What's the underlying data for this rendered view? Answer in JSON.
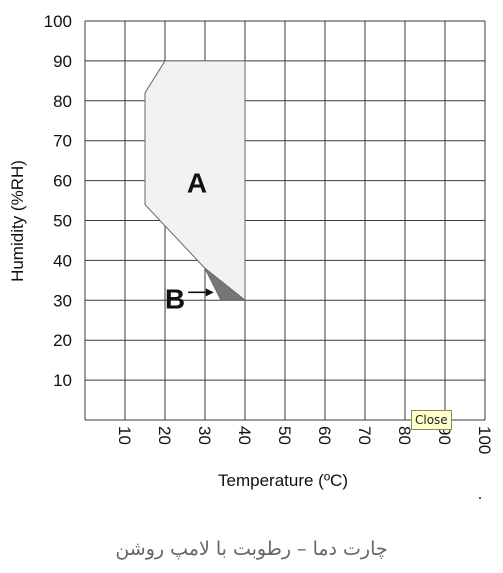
{
  "chart_data": {
    "type": "area",
    "xlabel": "Temperature (ºC)",
    "ylabel": "Humidity (%RH)",
    "xlim": [
      0,
      100
    ],
    "ylim": [
      0,
      100
    ],
    "x_ticks": [
      "10",
      "20",
      "30",
      "40",
      "50",
      "60",
      "70",
      "80",
      "90",
      "100"
    ],
    "y_ticks": [
      "10",
      "20",
      "30",
      "40",
      "50",
      "60",
      "70",
      "80",
      "90",
      "100"
    ],
    "grid": true,
    "regions": [
      {
        "label": "A",
        "points": [
          [
            20,
            90
          ],
          [
            40,
            90
          ],
          [
            40,
            30
          ],
          [
            30,
            38
          ],
          [
            15,
            54
          ],
          [
            15,
            82
          ]
        ],
        "fill": "#f2f2f2"
      },
      {
        "label": "B",
        "points": [
          [
            30,
            38
          ],
          [
            40,
            30
          ],
          [
            34,
            30
          ]
        ],
        "fill": "#777777"
      }
    ]
  },
  "close_button": {
    "label": "Close"
  },
  "caption": "چارت دما – رطوبت با لامپ روشن"
}
